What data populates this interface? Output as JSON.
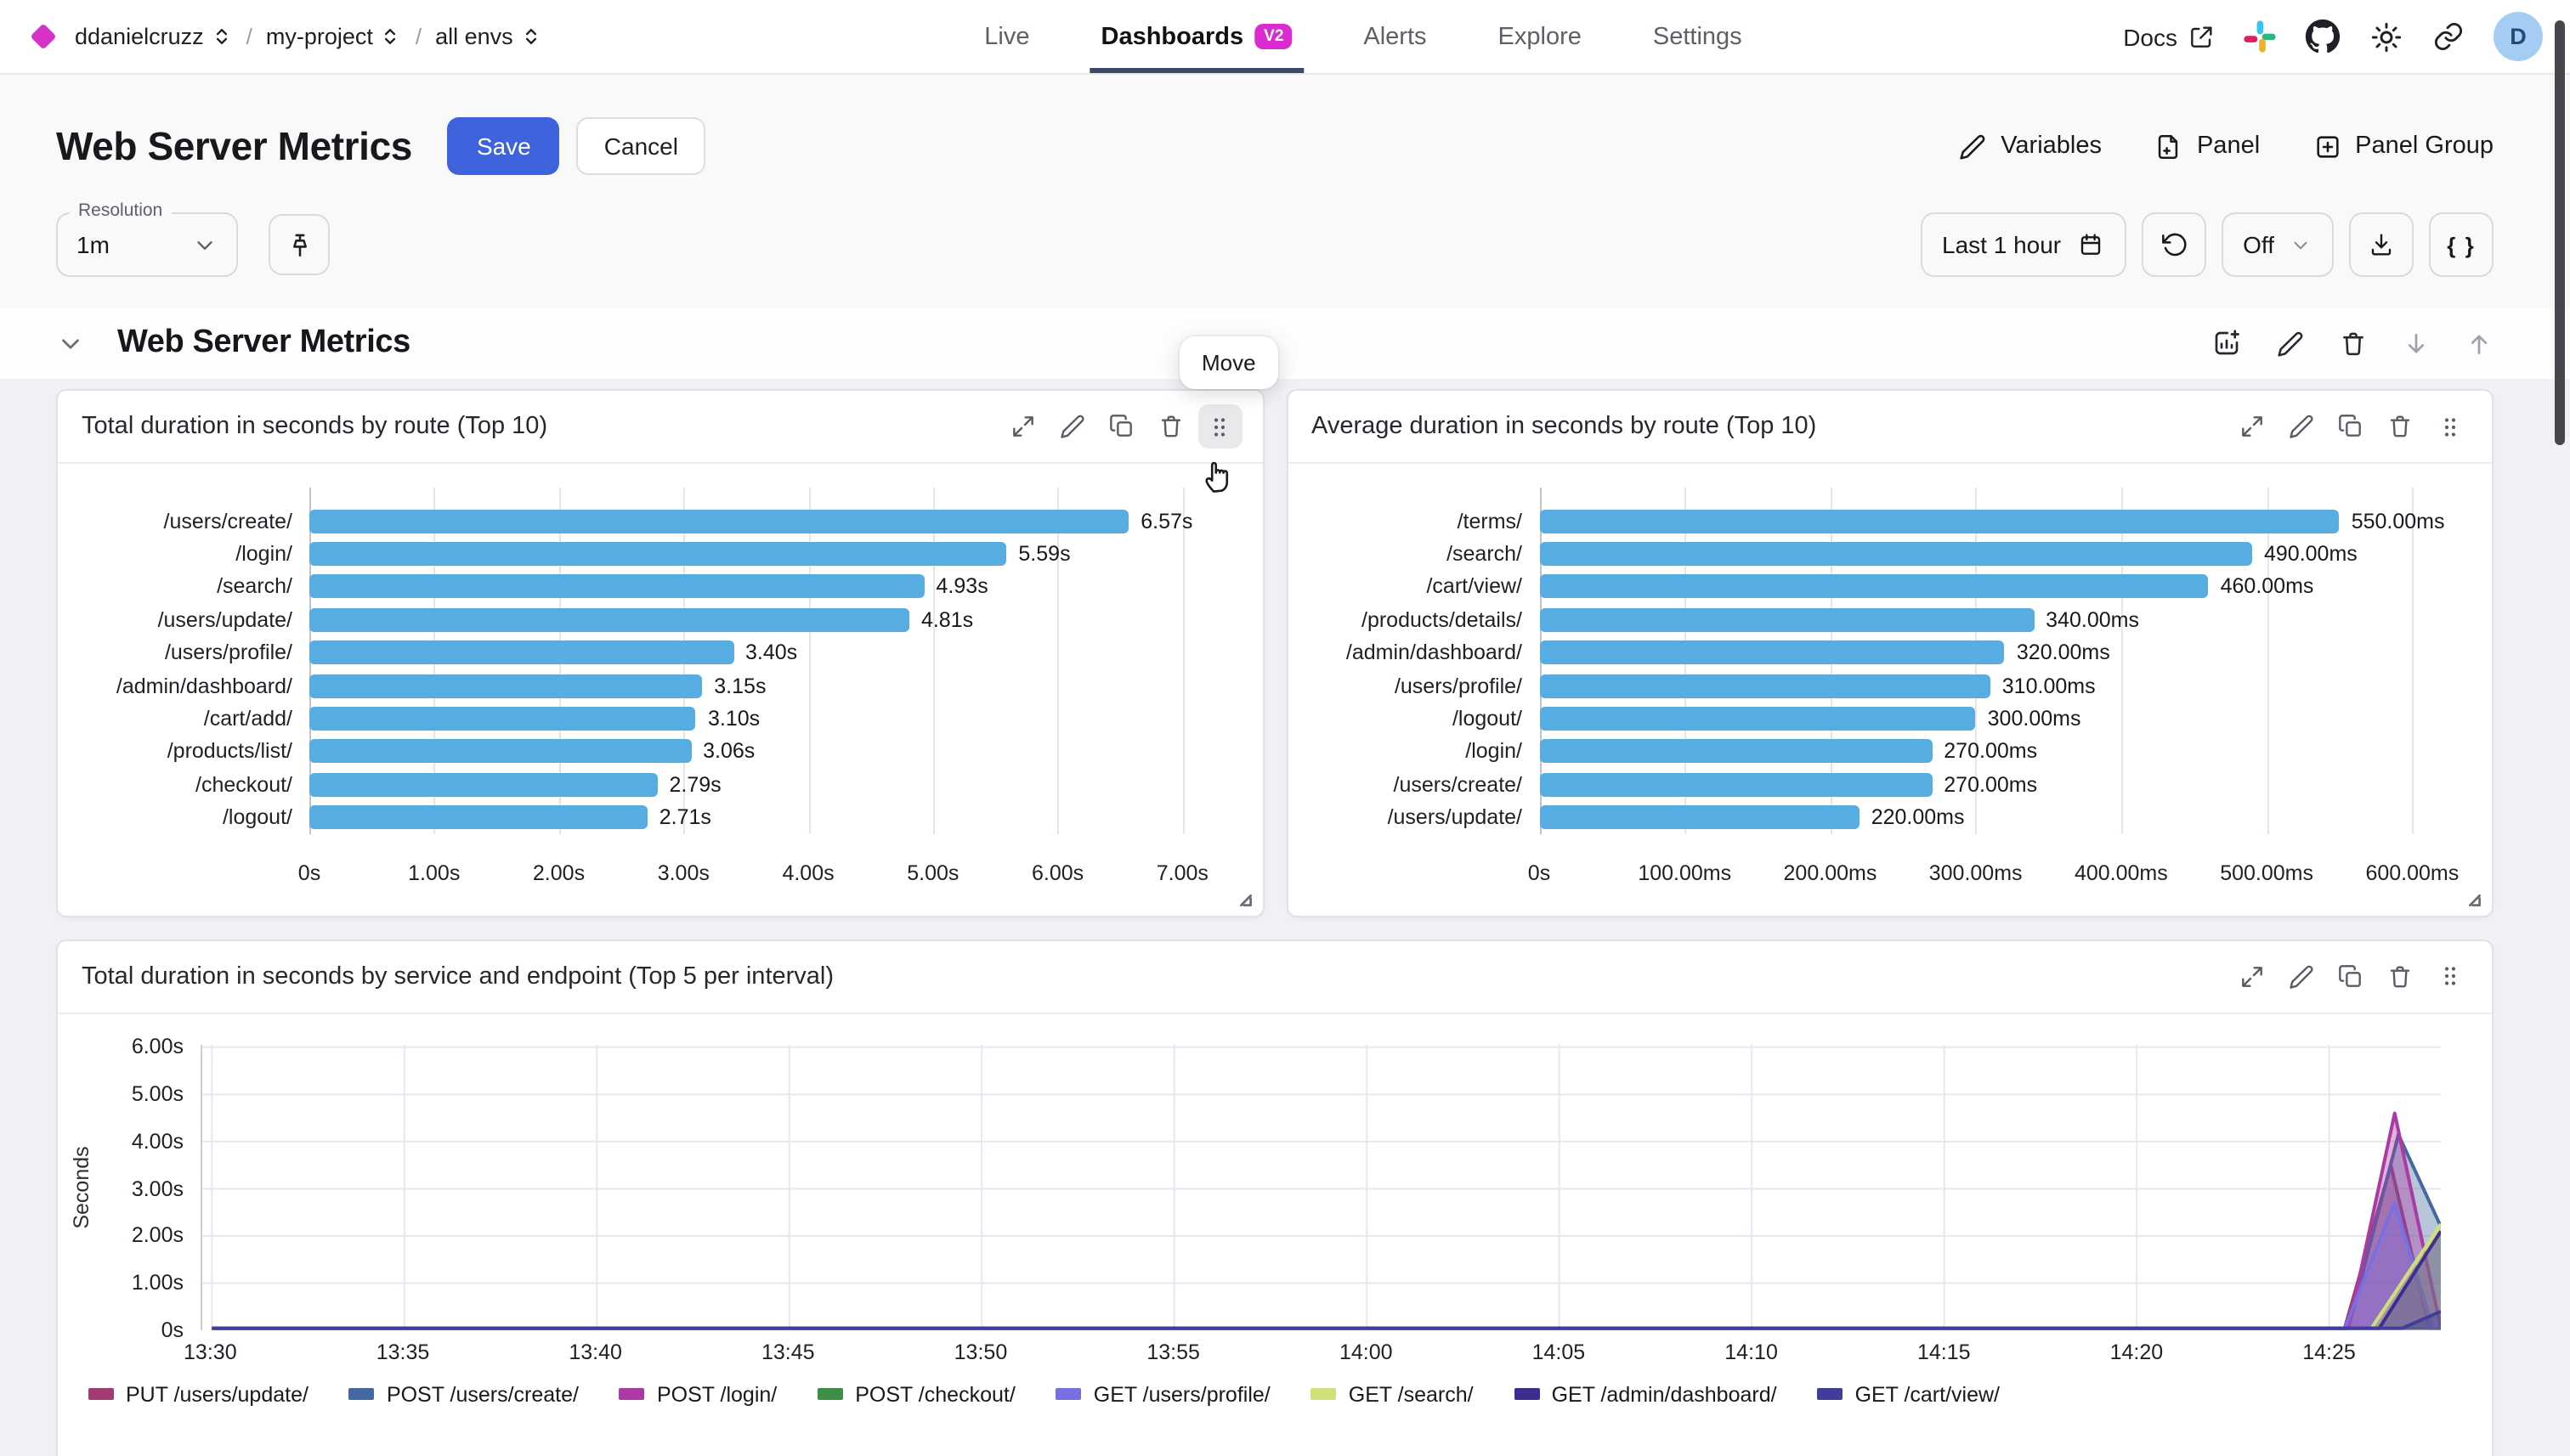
{
  "nav": {
    "separator": "/",
    "breadcrumb": [
      {
        "label": "ddanielcruzz"
      },
      {
        "label": "my-project"
      },
      {
        "label": "all envs"
      }
    ],
    "tabs": [
      {
        "label": "Live"
      },
      {
        "label": "Dashboards",
        "badge": "V2",
        "active": true
      },
      {
        "label": "Alerts"
      },
      {
        "label": "Explore"
      },
      {
        "label": "Settings"
      }
    ],
    "docs": {
      "label": "Docs"
    },
    "avatar": {
      "initial": "D"
    }
  },
  "header": {
    "title": "Web Server Metrics",
    "save": "Save",
    "cancel": "Cancel",
    "actions": [
      {
        "label": "Variables"
      },
      {
        "label": "Panel"
      },
      {
        "label": "Panel Group"
      }
    ]
  },
  "toolbar": {
    "resolution": {
      "label": "Resolution",
      "value": "1m"
    },
    "time_range": {
      "label": "Last 1 hour"
    },
    "auto_refresh": {
      "label": "Off"
    },
    "code_button": "{ }"
  },
  "group": {
    "title": "Web Server Metrics",
    "move_tooltip": "Move"
  },
  "colors": {
    "accent_blue": "#3e63dd",
    "badge_magenta": "#d92bd0",
    "brand_diamond": "#d632c8",
    "bar_blue": "#57ade2",
    "avatar_bg": "#a5cdf3"
  },
  "chart_data": [
    {
      "type": "bar",
      "orientation": "horizontal",
      "title": "Total duration in seconds by route (Top 10)",
      "categories": [
        "/users/create/",
        "/login/",
        "/search/",
        "/users/update/",
        "/users/profile/",
        "/admin/dashboard/",
        "/cart/add/",
        "/products/list/",
        "/checkout/",
        "/logout/"
      ],
      "values": [
        6.57,
        5.59,
        4.93,
        4.81,
        3.4,
        3.15,
        3.1,
        3.06,
        2.79,
        2.71
      ],
      "value_labels": [
        "6.57s",
        "5.59s",
        "4.93s",
        "4.81s",
        "3.40s",
        "3.15s",
        "3.10s",
        "3.06s",
        "2.79s",
        "2.71s"
      ],
      "x_ticks": {
        "values": [
          0,
          1,
          2,
          3,
          4,
          5,
          6,
          7
        ],
        "labels": [
          "0s",
          "1.00s",
          "2.00s",
          "3.00s",
          "4.00s",
          "5.00s",
          "6.00s",
          "7.00s"
        ]
      },
      "xlim": [
        0,
        7.42
      ],
      "bar_color": "#57ade2",
      "grid": true
    },
    {
      "type": "bar",
      "orientation": "horizontal",
      "title": "Average duration in seconds by route (Top 10)",
      "categories": [
        "/terms/",
        "/search/",
        "/cart/view/",
        "/products/details/",
        "/admin/dashboard/",
        "/users/profile/",
        "/logout/",
        "/login/",
        "/users/create/",
        "/users/update/"
      ],
      "values": [
        550,
        490,
        460,
        340,
        320,
        310,
        300,
        270,
        270,
        220
      ],
      "value_labels": [
        "550.00ms",
        "490.00ms",
        "460.00ms",
        "340.00ms",
        "320.00ms",
        "310.00ms",
        "300.00ms",
        "270.00ms",
        "270.00ms",
        "220.00ms"
      ],
      "x_ticks": {
        "values": [
          0,
          100,
          200,
          300,
          400,
          500,
          600
        ],
        "labels": [
          "0s",
          "100.00ms",
          "200.00ms",
          "300.00ms",
          "400.00ms",
          "500.00ms",
          "600.00ms"
        ]
      },
      "xlim": [
        0,
        636
      ],
      "bar_color": "#57ade2",
      "grid": true
    },
    {
      "type": "area",
      "title": "Total duration in seconds by service and endpoint (Top 5 per interval)",
      "ylabel": "Seconds",
      "y_ticks": {
        "values": [
          0,
          1,
          2,
          3,
          4,
          5,
          6
        ],
        "labels": [
          "0s",
          "1.00s",
          "2.00s",
          "3.00s",
          "4.00s",
          "5.00s",
          "6.00s"
        ]
      },
      "ylim": [
        0,
        6.05
      ],
      "x_ticks": {
        "minutes": [
          0,
          5,
          10,
          15,
          20,
          25,
          30,
          35,
          40,
          45,
          50,
          55
        ],
        "labels": [
          "13:30",
          "13:35",
          "13:40",
          "13:45",
          "13:50",
          "13:55",
          "14:00",
          "14:05",
          "14:10",
          "14:15",
          "14:20",
          "14:25"
        ]
      },
      "x_range": [
        -0.25,
        57.9
      ],
      "grid": true,
      "legend_position": "bottom",
      "series": [
        {
          "name": "PUT /users/update/",
          "color": "#a23b72",
          "points": [
            [
              0,
              0
            ],
            [
              55.4,
              0
            ],
            [
              56.6,
              3.5
            ],
            [
              57.6,
              0
            ],
            [
              57.9,
              0
            ]
          ]
        },
        {
          "name": "POST /users/create/",
          "color": "#44699e",
          "points": [
            [
              0,
              0
            ],
            [
              55.5,
              0
            ],
            [
              56.8,
              4.15
            ],
            [
              57.9,
              2.2
            ]
          ]
        },
        {
          "name": "POST /login/",
          "color": "#ac39a4",
          "points": [
            [
              0,
              0
            ],
            [
              55.5,
              0
            ],
            [
              56.7,
              4.6
            ],
            [
              57.9,
              0.05
            ]
          ]
        },
        {
          "name": "POST /checkout/",
          "color": "#3e8e46",
          "points": [
            [
              0,
              0
            ],
            [
              57.9,
              0
            ]
          ]
        },
        {
          "name": "GET /users/profile/",
          "color": "#7a6fe0",
          "points": [
            [
              0,
              0
            ],
            [
              55.4,
              0
            ],
            [
              56.7,
              2.7
            ],
            [
              57.7,
              0
            ],
            [
              57.9,
              0
            ]
          ]
        },
        {
          "name": "GET /search/",
          "color": "#cfe07a",
          "points": [
            [
              0,
              0
            ],
            [
              56.1,
              0
            ],
            [
              57.9,
              2.25
            ]
          ]
        },
        {
          "name": "GET /admin/dashboard/",
          "color": "#3d2e8d",
          "points": [
            [
              0,
              0
            ],
            [
              56.3,
              0
            ],
            [
              57.9,
              2.1
            ]
          ]
        },
        {
          "name": "GET /cart/view/",
          "color": "#403e9a",
          "points": [
            [
              0,
              0
            ],
            [
              56.9,
              0
            ],
            [
              57.9,
              0.4
            ]
          ]
        }
      ]
    }
  ]
}
